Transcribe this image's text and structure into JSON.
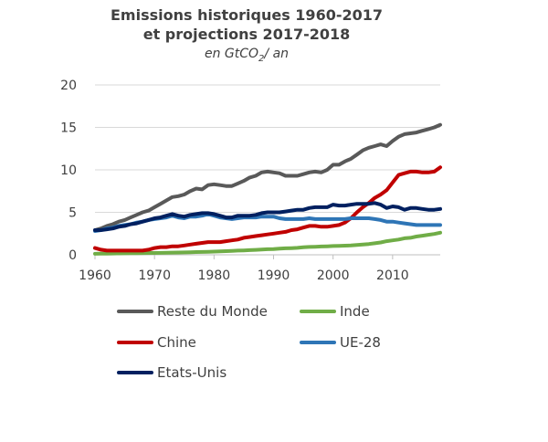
{
  "chart_data": {
    "type": "line",
    "title_lines": [
      "Emissions historiques 1960-2017",
      "et projections 2017-2018"
    ],
    "subtitle": {
      "prefix": "en GtCO",
      "sub": "2",
      "suffix": "/ an"
    },
    "xlabel": "",
    "ylabel": "",
    "xlim": [
      1960,
      2018
    ],
    "ylim": [
      0,
      20
    ],
    "x_ticks": [
      "1960",
      "1970",
      "1980",
      "1990",
      "2000",
      "2010"
    ],
    "y_ticks": [
      "0",
      "5",
      "10",
      "15",
      "20"
    ],
    "grid": true,
    "legend_position": "bottom",
    "x": [
      1960,
      1961,
      1962,
      1963,
      1964,
      1965,
      1966,
      1967,
      1968,
      1969,
      1970,
      1971,
      1972,
      1973,
      1974,
      1975,
      1976,
      1977,
      1978,
      1979,
      1980,
      1981,
      1982,
      1983,
      1984,
      1985,
      1986,
      1987,
      1988,
      1989,
      1990,
      1991,
      1992,
      1993,
      1994,
      1995,
      1996,
      1997,
      1998,
      1999,
      2000,
      2001,
      2002,
      2003,
      2004,
      2005,
      2006,
      2007,
      2008,
      2009,
      2010,
      2011,
      2012,
      2013,
      2014,
      2015,
      2016,
      2017,
      2018
    ],
    "series": [
      {
        "name": "Reste du Monde",
        "color": "#595959",
        "values": [
          2.9,
          3.1,
          3.4,
          3.6,
          3.9,
          4.1,
          4.4,
          4.7,
          5.0,
          5.2,
          5.6,
          6.0,
          6.4,
          6.8,
          6.9,
          7.1,
          7.5,
          7.8,
          7.7,
          8.2,
          8.3,
          8.2,
          8.1,
          8.1,
          8.4,
          8.7,
          9.1,
          9.3,
          9.7,
          9.8,
          9.7,
          9.6,
          9.3,
          9.3,
          9.3,
          9.5,
          9.7,
          9.8,
          9.7,
          10.0,
          10.6,
          10.6,
          11.0,
          11.3,
          11.8,
          12.3,
          12.6,
          12.8,
          13.0,
          12.8,
          13.4,
          13.9,
          14.2,
          14.3,
          14.4,
          14.6,
          14.8,
          15.0,
          15.3
        ]
      },
      {
        "name": "Inde",
        "color": "#70ad47",
        "values": [
          0.12,
          0.13,
          0.14,
          0.15,
          0.16,
          0.17,
          0.18,
          0.19,
          0.2,
          0.21,
          0.22,
          0.23,
          0.25,
          0.26,
          0.27,
          0.28,
          0.3,
          0.32,
          0.33,
          0.35,
          0.38,
          0.4,
          0.43,
          0.46,
          0.49,
          0.52,
          0.55,
          0.58,
          0.62,
          0.66,
          0.68,
          0.72,
          0.76,
          0.79,
          0.82,
          0.88,
          0.92,
          0.95,
          0.98,
          1.0,
          1.03,
          1.05,
          1.07,
          1.1,
          1.15,
          1.2,
          1.27,
          1.36,
          1.45,
          1.6,
          1.7,
          1.8,
          1.95,
          2.0,
          2.15,
          2.25,
          2.35,
          2.45,
          2.6
        ]
      },
      {
        "name": "Chine",
        "color": "#c00000",
        "values": [
          0.8,
          0.6,
          0.5,
          0.5,
          0.5,
          0.5,
          0.5,
          0.5,
          0.5,
          0.6,
          0.8,
          0.9,
          0.9,
          1.0,
          1.0,
          1.1,
          1.2,
          1.3,
          1.4,
          1.5,
          1.5,
          1.5,
          1.6,
          1.7,
          1.8,
          2.0,
          2.1,
          2.2,
          2.3,
          2.4,
          2.5,
          2.6,
          2.7,
          2.9,
          3.0,
          3.2,
          3.4,
          3.4,
          3.3,
          3.3,
          3.4,
          3.5,
          3.8,
          4.3,
          5.0,
          5.6,
          6.1,
          6.7,
          7.1,
          7.6,
          8.5,
          9.4,
          9.6,
          9.8,
          9.8,
          9.7,
          9.7,
          9.8,
          10.3
        ]
      },
      {
        "name": "UE-28",
        "color": "#2e75b6",
        "values": [
          2.8,
          2.9,
          3.1,
          3.2,
          3.4,
          3.5,
          3.6,
          3.8,
          3.9,
          4.1,
          4.2,
          4.3,
          4.4,
          4.6,
          4.4,
          4.3,
          4.5,
          4.5,
          4.6,
          4.8,
          4.6,
          4.4,
          4.3,
          4.2,
          4.3,
          4.4,
          4.4,
          4.4,
          4.5,
          4.5,
          4.5,
          4.3,
          4.2,
          4.2,
          4.2,
          4.2,
          4.3,
          4.2,
          4.2,
          4.2,
          4.2,
          4.2,
          4.2,
          4.3,
          4.3,
          4.3,
          4.3,
          4.2,
          4.1,
          3.9,
          3.9,
          3.8,
          3.7,
          3.6,
          3.5,
          3.5,
          3.5,
          3.5,
          3.5
        ]
      },
      {
        "name": "Etats-Unis",
        "color": "#002060",
        "values": [
          2.9,
          2.9,
          3.0,
          3.1,
          3.3,
          3.4,
          3.6,
          3.7,
          3.9,
          4.1,
          4.3,
          4.4,
          4.6,
          4.8,
          4.6,
          4.5,
          4.7,
          4.8,
          4.9,
          4.9,
          4.8,
          4.6,
          4.4,
          4.4,
          4.6,
          4.6,
          4.6,
          4.7,
          4.9,
          5.0,
          5.0,
          5.0,
          5.1,
          5.2,
          5.3,
          5.3,
          5.5,
          5.6,
          5.6,
          5.6,
          5.9,
          5.8,
          5.8,
          5.9,
          6.0,
          6.0,
          6.0,
          6.1,
          5.9,
          5.5,
          5.7,
          5.6,
          5.3,
          5.5,
          5.5,
          5.4,
          5.3,
          5.3,
          5.4
        ]
      }
    ],
    "legend_order": [
      "Reste du Monde",
      "Inde",
      "Chine",
      "UE-28",
      "Etats-Unis"
    ]
  }
}
